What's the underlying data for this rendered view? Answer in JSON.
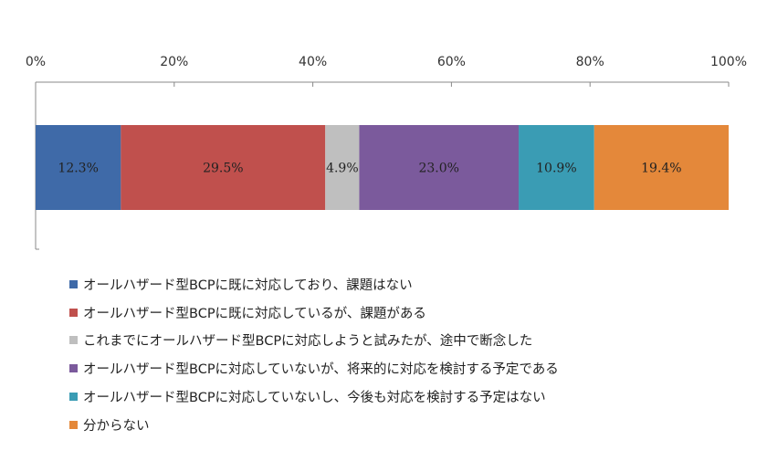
{
  "chart_data": {
    "type": "bar",
    "orientation": "horizontal-stacked-100",
    "title": "",
    "xlabel": "",
    "ylabel": "",
    "xlim": [
      0,
      100
    ],
    "x_ticks": [
      "0%",
      "20%",
      "40%",
      "60%",
      "80%",
      "100%"
    ],
    "grid": false,
    "legend_position": "bottom",
    "series": [
      {
        "name": "オールハザード型BCPに既に対応しており、課題はない",
        "value": 12.3,
        "label": "12.3%",
        "color": "#3f6aa8"
      },
      {
        "name": "オールハザード型BCPに既に対応しているが、課題がある",
        "value": 29.5,
        "label": "29.5%",
        "color": "#c0504d"
      },
      {
        "name": "これまでにオールハザード型BCPに対応しようと試みたが、途中で断念した",
        "value": 4.9,
        "label": "4.9%",
        "color": "#bfbfbf"
      },
      {
        "name": "オールハザード型BCPに対応していないが、将来的に対応を検討する予定である",
        "value": 23.0,
        "label": "23.0%",
        "color": "#7b5a9c"
      },
      {
        "name": "オールハザード型BCPに対応していないし、今後も対応を検討する予定はない",
        "value": 10.9,
        "label": "10.9%",
        "color": "#3a9cb4"
      },
      {
        "name": "分からない",
        "value": 19.4,
        "label": "19.4%",
        "color": "#e4883a"
      }
    ]
  }
}
